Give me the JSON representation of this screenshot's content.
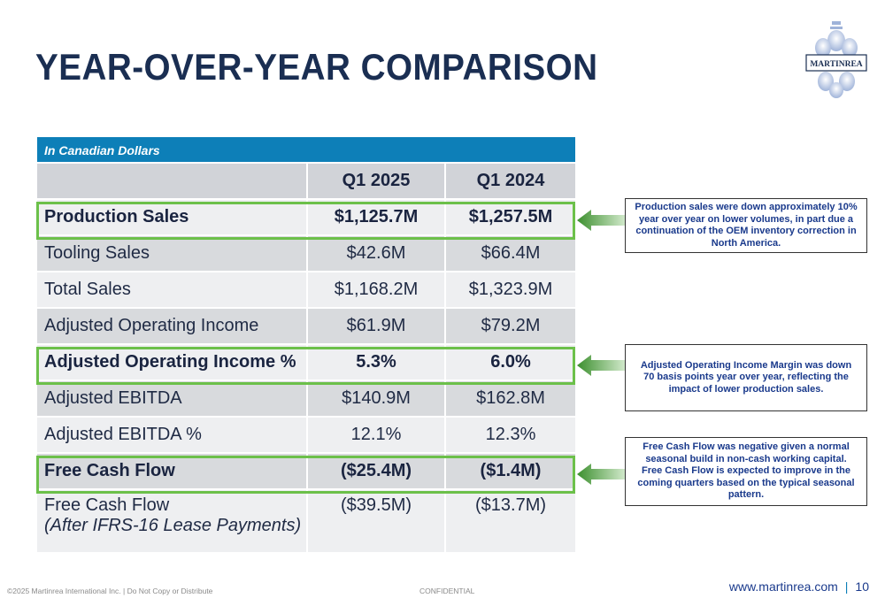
{
  "title": "YEAR-OVER-YEAR COMPARISON",
  "logo": {
    "text": "MARTINREA"
  },
  "table": {
    "caption": "In Canadian Dollars",
    "columns": [
      "",
      "Q1 2025",
      "Q1 2024"
    ],
    "rows": [
      {
        "label": "Production Sales",
        "q1_2025": "$1,125.7M",
        "q1_2024": "$1,257.5M",
        "bold": true,
        "highlighted": true
      },
      {
        "label": "Tooling Sales",
        "q1_2025": "$42.6M",
        "q1_2024": "$66.4M"
      },
      {
        "label": "Total Sales",
        "q1_2025": "$1,168.2M",
        "q1_2024": "$1,323.9M"
      },
      {
        "label": "Adjusted Operating Income",
        "q1_2025": "$61.9M",
        "q1_2024": "$79.2M"
      },
      {
        "label": "Adjusted Operating Income %",
        "q1_2025": "5.3%",
        "q1_2024": "6.0%",
        "bold": true,
        "highlighted": true
      },
      {
        "label": "Adjusted EBITDA",
        "q1_2025": "$140.9M",
        "q1_2024": "$162.8M"
      },
      {
        "label": "Adjusted EBITDA %",
        "q1_2025": "12.1%",
        "q1_2024": "12.3%"
      },
      {
        "label": "Free Cash Flow",
        "q1_2025": "($25.4M)",
        "q1_2024": "($1.4M)",
        "bold": true,
        "highlighted": true
      },
      {
        "label": "Free Cash Flow",
        "sublabel": "(After IFRS-16 Lease Payments)",
        "q1_2025": "($39.5M)",
        "q1_2024": "($13.7M)"
      }
    ]
  },
  "notes": [
    "Production sales were down approximately 10% year over year on lower volumes, in part due a continuation of the OEM inventory correction in North America.",
    "Adjusted Operating Income Margin was down 70 basis points year over year, reflecting the impact of lower production sales.",
    "Free Cash Flow was negative given a normal seasonal build in non-cash working capital. Free Cash Flow is expected to improve in the coming quarters based on the typical seasonal pattern."
  ],
  "footer": {
    "copyright": "©2025 Martinrea International Inc. | Do Not Copy or Distribute",
    "confidential": "CONFIDENTIAL",
    "website": "www.martinrea.com",
    "separator": "|",
    "page_number": "10"
  },
  "colors": {
    "title": "#1a2e52",
    "header_blue": "#0d7fb8",
    "highlight_green": "#6cc04a",
    "note_text": "#1a3a8c"
  }
}
